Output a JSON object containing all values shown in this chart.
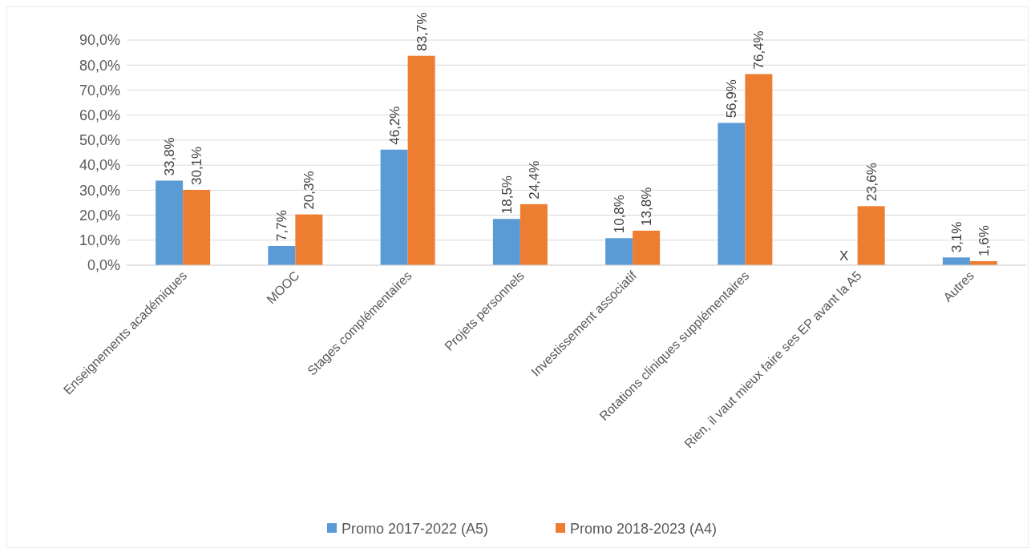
{
  "chart_data": {
    "type": "bar",
    "categories": [
      "Enseignements académiques",
      "MOOC",
      "Stages complémentaires",
      "Projets personnels",
      "Investissement associatif",
      "Rotations cliniques supplémentaires",
      "Rien, il vaut mieux faire ses EP avant la A5",
      "Autres"
    ],
    "series": [
      {
        "name": "Promo 2017-2022 (A5)",
        "color": "#5b9bd5",
        "values": [
          33.8,
          7.7,
          46.2,
          18.5,
          10.8,
          56.9,
          null,
          3.1
        ],
        "value_labels": [
          "33,8%",
          "7,7%",
          "46,2%",
          "18,5%",
          "10,8%",
          "56,9%",
          "X",
          "3,1%"
        ]
      },
      {
        "name": "Promo 2018-2023 (A4)",
        "color": "#ed7d31",
        "values": [
          30.1,
          20.3,
          83.7,
          24.4,
          13.8,
          76.4,
          23.6,
          1.6
        ],
        "value_labels": [
          "30,1%",
          "20,3%",
          "83,7%",
          "24,4%",
          "13,8%",
          "76,4%",
          "23,6%",
          "1,6%"
        ]
      }
    ],
    "ylim": [
      0,
      90
    ],
    "yticks": [
      {
        "value": 0,
        "label": "0,0%"
      },
      {
        "value": 10,
        "label": "10,0%"
      },
      {
        "value": 20,
        "label": "20,0%"
      },
      {
        "value": 30,
        "label": "30,0%"
      },
      {
        "value": 40,
        "label": "40,0%"
      },
      {
        "value": 50,
        "label": "50,0%"
      },
      {
        "value": 60,
        "label": "60,0%"
      },
      {
        "value": 70,
        "label": "70,0%"
      },
      {
        "value": 80,
        "label": "80,0%"
      },
      {
        "value": 90,
        "label": "90,0%"
      }
    ],
    "grid": "y",
    "legend": "bottom"
  }
}
